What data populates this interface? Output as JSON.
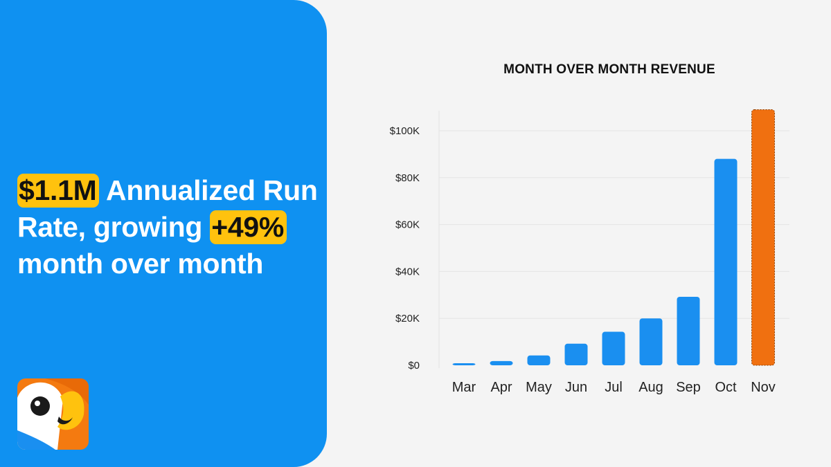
{
  "headline": {
    "highlight_1": "$1.1M",
    "text_1": " Annualized Run Rate, growing ",
    "highlight_2": "+49%",
    "text_2": " month over month"
  },
  "colors": {
    "panel_blue": "#0f91f1",
    "highlight_yellow": "#ffc20e",
    "bar_blue": "#1a8ff0",
    "bar_orange": "#f07010"
  },
  "logo": {
    "icon": "parrot-icon"
  },
  "chart_data": {
    "type": "bar",
    "title": "MONTH OVER MONTH REVENUE",
    "xlabel": "",
    "ylabel": "",
    "categories": [
      "Mar",
      "Apr",
      "May",
      "Jun",
      "Jul",
      "Aug",
      "Sep",
      "Oct",
      "Nov"
    ],
    "values": [
      700,
      1800,
      4200,
      9200,
      14300,
      20000,
      29200,
      88000,
      109000
    ],
    "highlighted_category": "Nov",
    "y_ticks": [
      0,
      20000,
      40000,
      60000,
      80000,
      100000
    ],
    "y_tick_labels": [
      "$0",
      "$20K",
      "$40K",
      "$60K",
      "$80K",
      "$100K"
    ],
    "ylim": [
      0,
      110000
    ],
    "grid": true,
    "legend": "none"
  }
}
